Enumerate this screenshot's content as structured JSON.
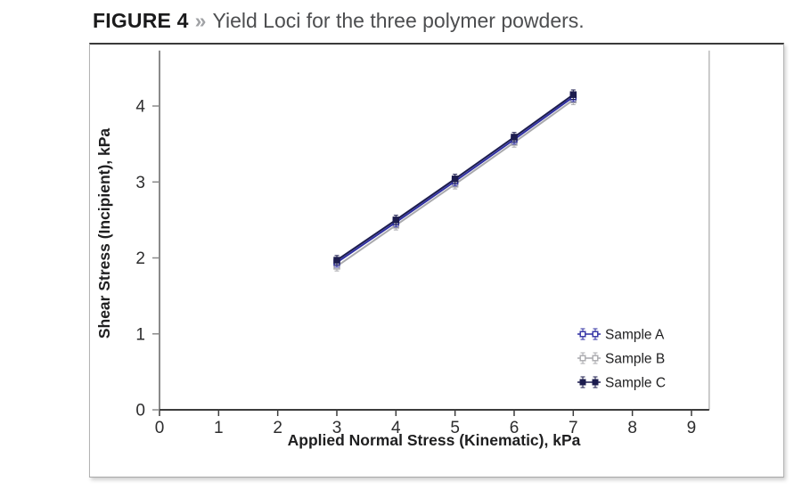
{
  "figure": {
    "label": "FIGURE 4",
    "separator": "»",
    "caption": "Yield Loci for the three polymer powders."
  },
  "chart_data": {
    "type": "line",
    "title": "",
    "xlabel": "Applied Normal Stress (Kinematic), kPa",
    "ylabel": "Shear Stress (Incipient), kPa",
    "xlim": [
      0,
      9.3
    ],
    "ylim": [
      0,
      4.73
    ],
    "xticks": [
      0,
      1,
      2,
      3,
      4,
      5,
      6,
      7,
      8,
      9
    ],
    "yticks": [
      0,
      1,
      2,
      3,
      4
    ],
    "grid": false,
    "legend_position": "lower right",
    "error_bar_kpa": 0.05,
    "x": [
      3,
      4,
      5,
      6,
      7
    ],
    "series": [
      {
        "name": "Sample A",
        "color": "#2e2ea2",
        "marker": "square-open",
        "values": [
          1.94,
          2.47,
          3.01,
          3.56,
          4.12
        ]
      },
      {
        "name": "Sample B",
        "color": "#a9a9ad",
        "marker": "square-open",
        "values": [
          1.89,
          2.43,
          2.97,
          3.52,
          4.08
        ]
      },
      {
        "name": "Sample C",
        "color": "#1c1c4e",
        "marker": "square-filled",
        "values": [
          1.97,
          2.5,
          3.04,
          3.59,
          4.15
        ]
      }
    ],
    "axis_colors": {
      "x_axis": "#3c3c3c",
      "y_axis": "#8a8a8a",
      "right_spine": "#a9a9a9",
      "tick_text": "#2d2d2e"
    }
  }
}
